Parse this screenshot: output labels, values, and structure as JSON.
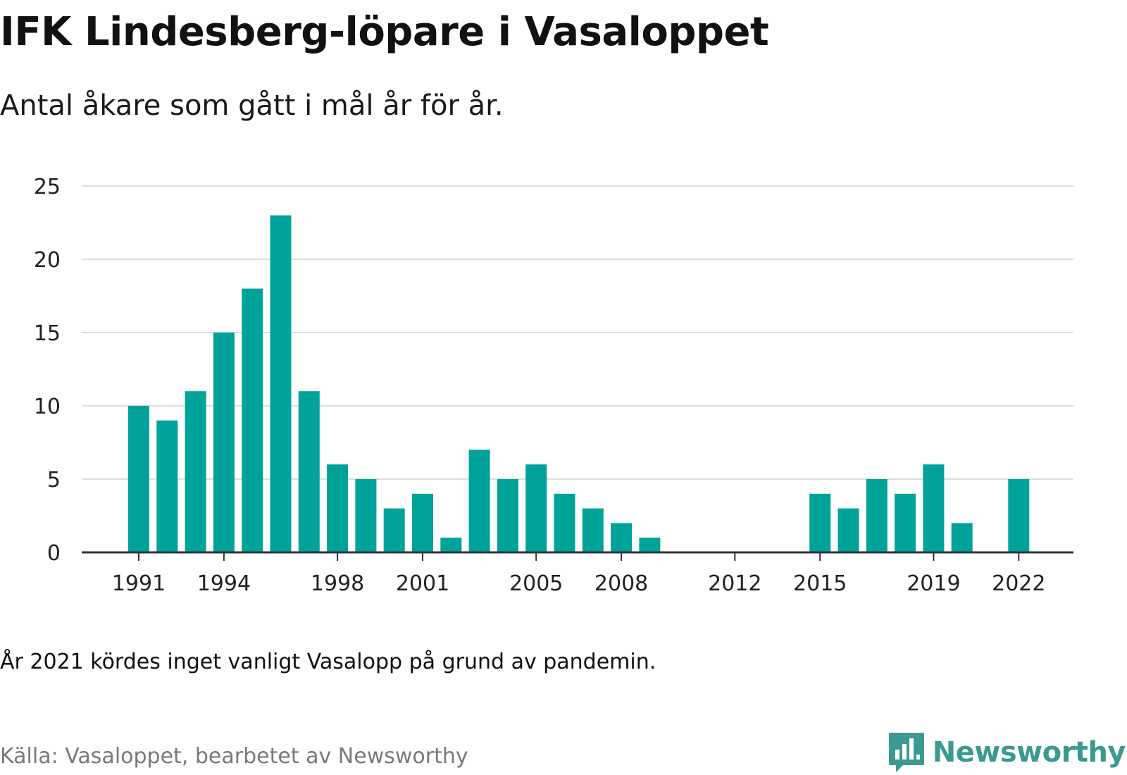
{
  "title": "IFK Lindesberg-löpare i Vasaloppet",
  "subtitle": "Antal åkare som gått i mål år för år.",
  "note": "År 2021 kördes inget vanligt Vasalopp på grund av pandemin.",
  "source": "Källa: Vasaloppet, bearbetet av Newsworthy",
  "brand": {
    "name": "Newsworthy",
    "icon": "newsworthy-logo-icon",
    "color": "#3a9a92"
  },
  "colors": {
    "bar": "#00a39a",
    "grid": "#dddddd",
    "axis": "#333333"
  },
  "chart_data": {
    "type": "bar",
    "categories": [
      "1991",
      "1992",
      "1993",
      "1994",
      "1995",
      "1996",
      "1997",
      "1998",
      "1999",
      "2000",
      "2001",
      "2002",
      "2003",
      "2004",
      "2005",
      "2006",
      "2007",
      "2008",
      "2009",
      "2010",
      "2011",
      "2012",
      "2013",
      "2014",
      "2015",
      "2016",
      "2017",
      "2018",
      "2019",
      "2020",
      "2021",
      "2022"
    ],
    "values": [
      10,
      9,
      11,
      15,
      18,
      23,
      11,
      6,
      5,
      3,
      4,
      1,
      7,
      5,
      6,
      4,
      3,
      2,
      1,
      0,
      0,
      0,
      0,
      0,
      4,
      3,
      5,
      4,
      6,
      2,
      0,
      5
    ],
    "x_tick_labels": [
      "1991",
      "1994",
      "1998",
      "2001",
      "2005",
      "2008",
      "2012",
      "2015",
      "2019",
      "2022"
    ],
    "y_ticks": [
      0,
      5,
      10,
      15,
      20,
      25
    ],
    "ylim": [
      0,
      25
    ],
    "grid": true,
    "legend": "none",
    "xlabel": "",
    "ylabel": ""
  }
}
